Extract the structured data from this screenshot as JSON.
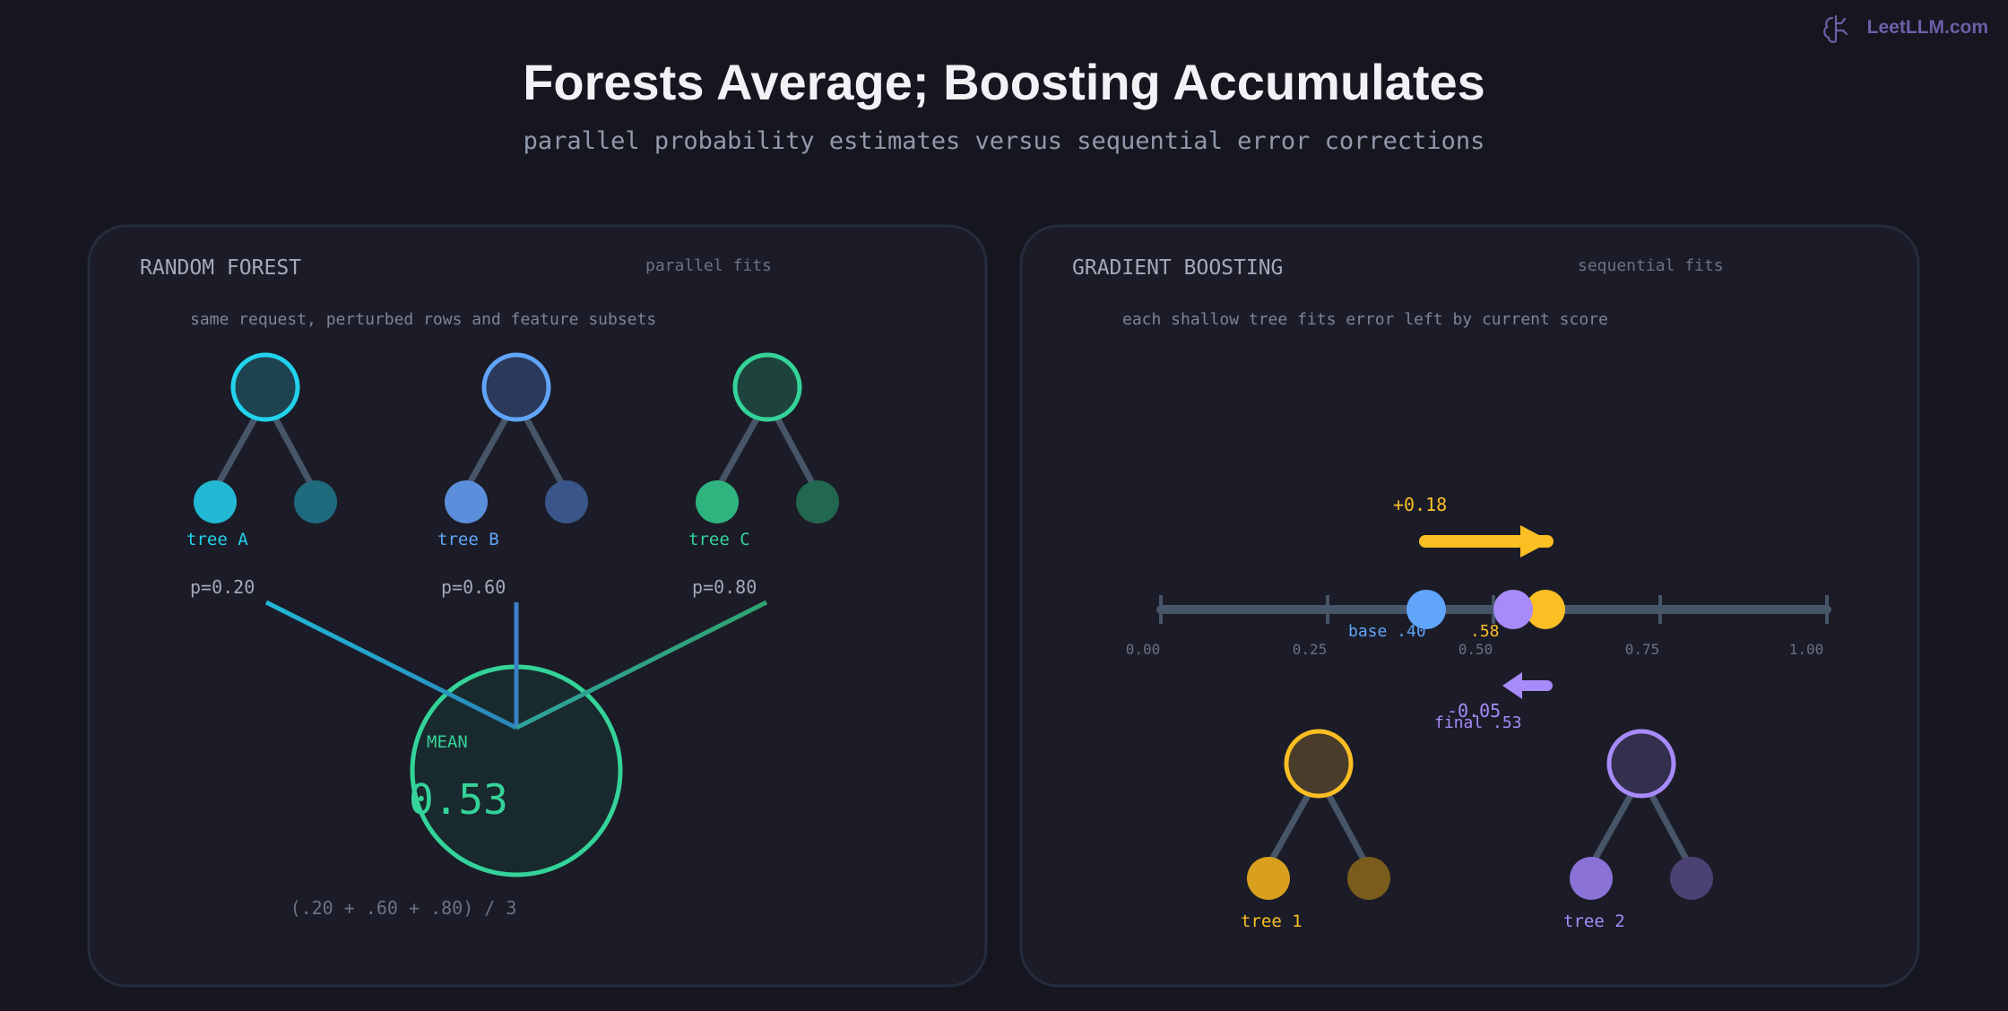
{
  "brand": {
    "text": "LeetLLM.com",
    "icon": "brain-icon"
  },
  "title": "Forests Average; Boosting Accumulates",
  "subtitle": "parallel probability estimates versus sequential error corrections",
  "colors": {
    "cyan": "#22d3ee",
    "blue": "#60a5fa",
    "green": "#34d399",
    "amber": "#fbbf24",
    "purple": "#a78bfa",
    "stem": "#475569"
  },
  "forest": {
    "title": "RANDOM FOREST",
    "tag": "parallel fits",
    "note": "same request, perturbed rows and feature subsets",
    "trees": [
      {
        "label": "tree A",
        "prob": "p=0.20"
      },
      {
        "label": "tree B",
        "prob": "p=0.60"
      },
      {
        "label": "tree C",
        "prob": "p=0.80"
      }
    ],
    "mean": {
      "label": "MEAN",
      "value": "0.53"
    },
    "formula": "(.20 + .60 + .80) / 3"
  },
  "boosting": {
    "title": "GRADIENT BOOSTING",
    "tag": "sequential fits",
    "note": "each shallow tree fits error left by current score",
    "axis_ticks": [
      "0.00",
      "0.25",
      "0.50",
      "0.75",
      "1.00"
    ],
    "base": {
      "label": "base .40",
      "value": 0.4
    },
    "step1": {
      "delta": "+0.18",
      "result_label": ".58",
      "value": 0.58
    },
    "step2": {
      "delta": "-0.05",
      "result_label": "final .53",
      "value": 0.53
    },
    "trees": [
      {
        "label": "tree 1"
      },
      {
        "label": "tree 2"
      }
    ]
  }
}
